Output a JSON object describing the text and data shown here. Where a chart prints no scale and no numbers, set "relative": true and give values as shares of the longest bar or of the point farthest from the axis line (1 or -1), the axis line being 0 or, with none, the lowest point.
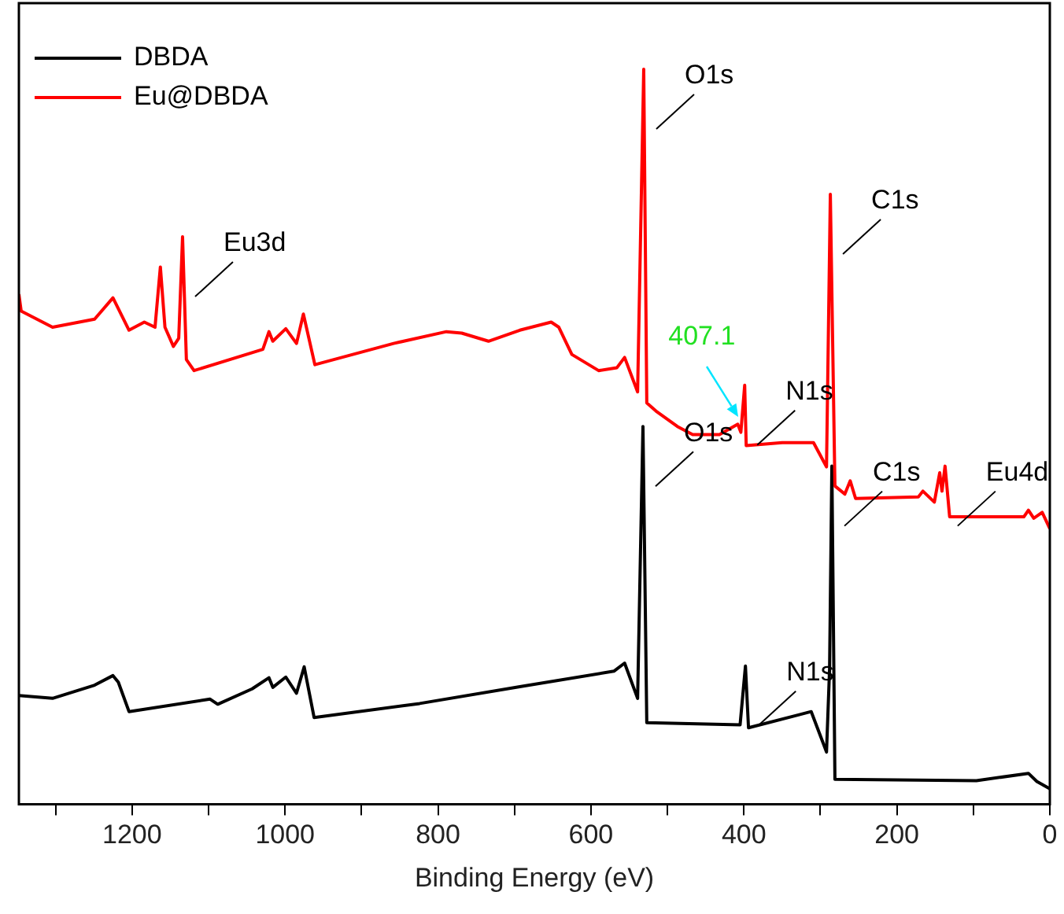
{
  "chart_data": {
    "type": "line",
    "xlabel": "Binding Energy (eV)",
    "relative": true,
    "xlim": [
      1348,
      0
    ],
    "xticks": [
      {
        "value": 1300,
        "label": null
      },
      1200,
      {
        "value": 1100,
        "label": null
      },
      1000,
      {
        "value": 900,
        "label": null
      },
      800,
      {
        "value": 700,
        "label": null
      },
      600,
      {
        "value": 500,
        "label": null
      },
      400,
      {
        "value": 300,
        "label": null
      },
      200,
      {
        "value": 100,
        "label": null
      },
      0
    ],
    "legend": "top left",
    "grid": false,
    "series": [
      {
        "name": "DBDA",
        "color": "#000000",
        "x": [
          1348,
          1304,
          1249,
          1225,
          1218,
          1204,
          1098,
          1088,
          1043,
          1021,
          1016,
          999,
          985,
          975,
          962,
          824,
          693,
          570,
          556,
          539,
          532,
          527,
          405,
          398,
          394,
          312,
          292,
          288,
          285,
          281,
          96,
          28,
          17,
          0
        ],
        "values": [
          0.148,
          0.144,
          0.162,
          0.175,
          0.166,
          0.126,
          0.143,
          0.136,
          0.157,
          0.172,
          0.159,
          0.173,
          0.151,
          0.187,
          0.118,
          0.137,
          0.16,
          0.181,
          0.192,
          0.144,
          0.514,
          0.111,
          0.108,
          0.188,
          0.104,
          0.126,
          0.071,
          0.184,
          0.46,
          0.034,
          0.032,
          0.042,
          0.031,
          0.021
        ]
      },
      {
        "name": "Eu@DBDA",
        "color": "#ff0000",
        "x": [
          1348,
          1345,
          1304,
          1249,
          1225,
          1204,
          1184,
          1170,
          1163,
          1157,
          1146,
          1139,
          1134,
          1129,
          1119,
          1029,
          1021,
          1016,
          999,
          985,
          976,
          961,
          858,
          789,
          769,
          734,
          693,
          652,
          642,
          625,
          590,
          566,
          556,
          539,
          531,
          527,
          515,
          487,
          467,
          432,
          408,
          404,
          399,
          397,
          350,
          309,
          292,
          287,
          281,
          268,
          261,
          254,
          172,
          166,
          151,
          144,
          141,
          137,
          131,
          34,
          28,
          21,
          10,
          0
        ],
        "values": [
          0.694,
          0.671,
          0.649,
          0.66,
          0.689,
          0.645,
          0.656,
          0.649,
          0.731,
          0.649,
          0.623,
          0.634,
          0.772,
          0.605,
          0.59,
          0.619,
          0.643,
          0.63,
          0.647,
          0.627,
          0.667,
          0.598,
          0.627,
          0.643,
          0.641,
          0.63,
          0.645,
          0.656,
          0.649,
          0.612,
          0.59,
          0.594,
          0.608,
          0.561,
          1,
          0.546,
          0.535,
          0.514,
          0.503,
          0.503,
          0.517,
          0.506,
          0.57,
          0.488,
          0.492,
          0.492,
          0.459,
          0.83,
          0.433,
          0.422,
          0.44,
          0.416,
          0.418,
          0.426,
          0.411,
          0.451,
          0.426,
          0.46,
          0.391,
          0.391,
          0.4,
          0.389,
          0.397,
          0.375
        ]
      }
    ],
    "annotations": [
      {
        "text": "Eu3d",
        "x": 1134,
        "y": 0.772
      },
      {
        "text": "O1s",
        "x": 531,
        "y": 1
      },
      {
        "text": "C1s",
        "x": 287,
        "y": 0.83
      },
      {
        "text": "N1s",
        "x": 399,
        "y": 0.57
      },
      {
        "text": "Eu4d",
        "x": 137,
        "y": 0.46
      },
      {
        "text": "O1s",
        "x": 532,
        "y": 0.514
      },
      {
        "text": "C1s",
        "x": 285,
        "y": 0.46
      },
      {
        "text": "N1s",
        "x": 398,
        "y": 0.188
      },
      {
        "text": "407.1",
        "x": 407.1,
        "y": 0.527
      }
    ]
  }
}
